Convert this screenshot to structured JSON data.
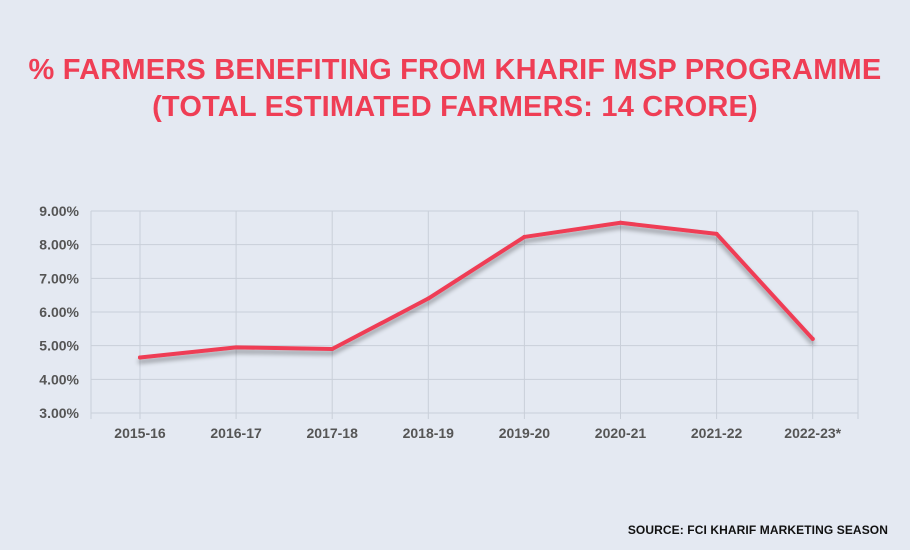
{
  "title": {
    "line1": "% FARMERS BENEFITING FROM KHARIF MSP PROGRAMME",
    "line2": "(TOTAL ESTIMATED FARMERS: 14 CRORE)"
  },
  "source": "SOURCE: FCI KHARIF MARKETING SEASON",
  "colors": {
    "background": "#e4e9f2",
    "line": "#ef3e55",
    "grid": "#c9cfd9",
    "tick_text": "#555555",
    "title": "#ef3e55"
  },
  "chart_data": {
    "type": "line",
    "title": "% FARMERS BENEFITING FROM KHARIF MSP PROGRAMME (TOTAL ESTIMATED FARMERS: 14 CRORE)",
    "categories": [
      "2015-16",
      "2016-17",
      "2017-18",
      "2018-19",
      "2019-20",
      "2020-21",
      "2021-22",
      "2022-23*"
    ],
    "series": [
      {
        "values": [
          4.65,
          4.95,
          4.9,
          6.4,
          8.23,
          8.65,
          8.32,
          5.2
        ]
      }
    ],
    "y_ticks": [
      "3.00%",
      "4.00%",
      "5.00%",
      "6.00%",
      "7.00%",
      "8.00%",
      "9.00%"
    ],
    "ylim": [
      3,
      9
    ],
    "xlabel": "",
    "ylabel": "",
    "grid": true,
    "legend": "none"
  }
}
